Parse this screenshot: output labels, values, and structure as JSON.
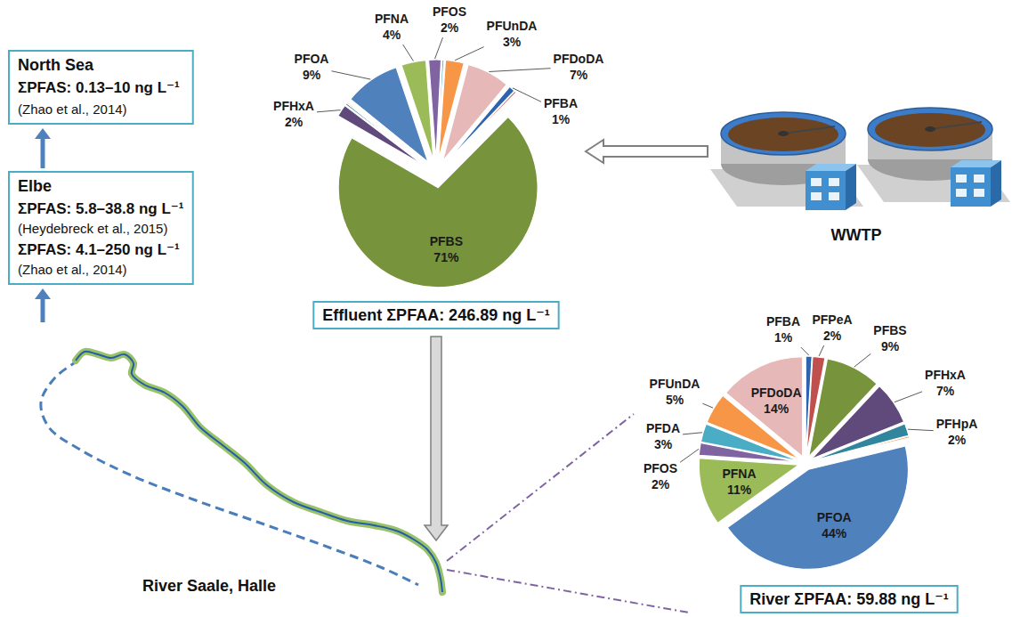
{
  "north_sea": {
    "title": "North Sea",
    "text": "ΣPFAS: 0.13–10 ng L⁻¹",
    "ref": "(Zhao et al., 2014)"
  },
  "elbe": {
    "title": "Elbe",
    "entries": [
      {
        "text": "ΣPFAS: 5.8–38.8 ng L⁻¹",
        "ref": "(Heydebreck et al., 2015)"
      },
      {
        "text": "ΣPFAS: 4.1–250 ng L⁻¹",
        "ref": "(Zhao et al., 2014)"
      }
    ]
  },
  "wwtp": {
    "label": "WWTP"
  },
  "river": {
    "label": "River Saale, Halle"
  },
  "chart_data": [
    {
      "type": "pie",
      "title": "Effluent ΣPFAA: 246.89 ng L⁻¹",
      "categories": [
        "PFBA",
        null,
        "PFBS",
        "PFHxA",
        null,
        null,
        "PFOA",
        "PFNA",
        "PFOS",
        null,
        "PFUnDA",
        "PFDoDA"
      ],
      "values": [
        1,
        0.3,
        71,
        2,
        0.3,
        0.2,
        9,
        4,
        2,
        0.3,
        3,
        7
      ],
      "value_labels": [
        "1%",
        null,
        "71%",
        "2%",
        null,
        null,
        "9%",
        "4%",
        "2%",
        null,
        "3%",
        "7%"
      ],
      "colors": [
        "#2e64ad",
        "#c0504d",
        "#77933c",
        "#604a7b",
        "#31859c",
        "#f79646",
        "#4f81bd",
        "#9bbb59",
        "#8064a2",
        "#4bacc6",
        "#f79646",
        "#e6b9b8"
      ],
      "data_labels": true
    },
    {
      "type": "pie",
      "title": "River ΣPFAA: 59.88 ng L⁻¹",
      "categories": [
        "PFBA",
        "PFPeA",
        "PFBS",
        "PFHxA",
        "PFHpA",
        null,
        "PFOA",
        "PFNA",
        "PFOS",
        "PFDA",
        "PFUnDA",
        "PFDoDA"
      ],
      "values": [
        1,
        2,
        9,
        7,
        2,
        0.3,
        44,
        11,
        2,
        3,
        5,
        14
      ],
      "value_labels": [
        "1%",
        "2%",
        "9%",
        "7%",
        "2%",
        null,
        "44%",
        "11%",
        "2%",
        "3%",
        "5%",
        "14%"
      ],
      "colors": [
        "#2e64ad",
        "#c0504d",
        "#77933c",
        "#604a7b",
        "#31859c",
        "#f79646",
        "#4f81bd",
        "#9bbb59",
        "#8064a2",
        "#4bacc6",
        "#f79646",
        "#e6b9b8"
      ],
      "data_labels": true
    }
  ]
}
